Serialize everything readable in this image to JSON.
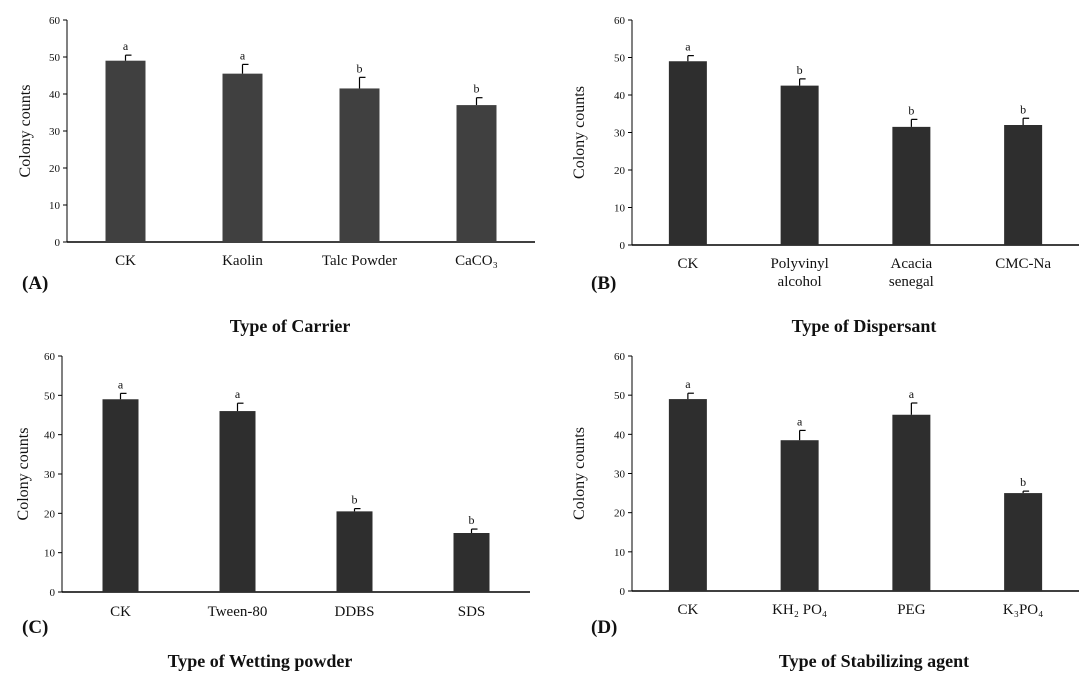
{
  "chart_data": [
    {
      "type": "bar",
      "panel_label": "(A)",
      "title": "Type of Carrier",
      "xlabel": "",
      "ylabel": "Colony counts",
      "ylim": [
        0,
        60
      ],
      "yticks": [
        "0",
        "10",
        "20",
        "30",
        "40",
        "50",
        "60"
      ],
      "categories": [
        "CK",
        "Kaolin",
        "Talc Powder",
        "CaCO₃"
      ],
      "values": [
        49,
        45.5,
        41.5,
        37
      ],
      "errors": [
        1.5,
        2.5,
        3,
        2
      ],
      "letters": [
        "a",
        "a",
        "b",
        "b"
      ],
      "bar_color": "#404040"
    },
    {
      "type": "bar",
      "panel_label": "(B)",
      "title": "Type of Dispersant",
      "xlabel": "",
      "ylabel": "Colony counts",
      "ylim": [
        0,
        60
      ],
      "yticks": [
        "0",
        "10",
        "20",
        "30",
        "40",
        "50",
        "60"
      ],
      "categories": [
        "CK",
        "Polyvinyl alcohol",
        "Acacia senegal",
        "CMC-Na"
      ],
      "values": [
        49,
        42.5,
        31.5,
        32
      ],
      "errors": [
        1.5,
        1.8,
        2,
        1.8
      ],
      "letters": [
        "a",
        "b",
        "b",
        "b"
      ],
      "bar_color": "#2e2e2e"
    },
    {
      "type": "bar",
      "panel_label": "(C)",
      "title": "Type of Wetting powder",
      "xlabel": "",
      "ylabel": "Colony counts",
      "ylim": [
        0,
        60
      ],
      "yticks": [
        "0",
        "10",
        "20",
        "30",
        "40",
        "50",
        "60"
      ],
      "categories": [
        "CK",
        "Tween-80",
        "DDBS",
        "SDS"
      ],
      "values": [
        49,
        46,
        20.5,
        15
      ],
      "errors": [
        1.5,
        2,
        0.7,
        1
      ],
      "letters": [
        "a",
        "a",
        "b",
        "b"
      ],
      "bar_color": "#2e2e2e"
    },
    {
      "type": "bar",
      "panel_label": "(D)",
      "title": "Type of Stabilizing agent",
      "xlabel": "",
      "ylabel": "Colony counts",
      "ylim": [
        0,
        60
      ],
      "yticks": [
        "0",
        "10",
        "20",
        "30",
        "40",
        "50",
        "60"
      ],
      "categories": [
        "CK",
        "KH₂ PO₄",
        "PEG",
        "K₃PO₄"
      ],
      "values": [
        49,
        38.5,
        45,
        25
      ],
      "errors": [
        1.5,
        2.5,
        3,
        0.5
      ],
      "letters": [
        "a",
        "a",
        "a",
        "b"
      ],
      "bar_color": "#2e2e2e"
    }
  ]
}
